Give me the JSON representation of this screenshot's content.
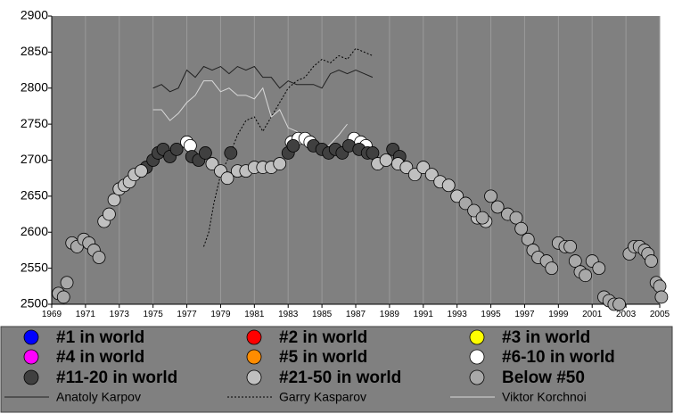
{
  "chart_data": {
    "type": "scatter",
    "xlim": [
      1969,
      2005
    ],
    "ylim": [
      2500,
      2900
    ],
    "xticks": [
      1969,
      1971,
      1973,
      1975,
      1977,
      1979,
      1981,
      1983,
      1985,
      1987,
      1989,
      1991,
      1993,
      1995,
      1997,
      1999,
      2001,
      2003,
      2005
    ],
    "yticks": [
      2500,
      2550,
      2600,
      2650,
      2700,
      2750,
      2800,
      2850,
      2900
    ],
    "grid": true,
    "series": [
      {
        "name": "#1 in world",
        "color": "#0000ff",
        "x": [],
        "values": []
      },
      {
        "name": "#2 in world",
        "color": "#ff0000",
        "x": [],
        "values": []
      },
      {
        "name": "#3 in world",
        "color": "#ffff00",
        "x": [],
        "values": []
      },
      {
        "name": "#4 in world",
        "color": "#ff00ff",
        "x": [],
        "values": []
      },
      {
        "name": "#5 in world",
        "color": "#ff8c00",
        "x": [],
        "values": []
      },
      {
        "name": "#6-10 in world",
        "color": "#ffffff",
        "x": [
          1977,
          1977.2,
          1983.2,
          1983.6,
          1984,
          1984.3,
          1986.9,
          1987.3,
          1987.6
        ],
        "values": [
          2725,
          2720,
          2725,
          2730,
          2730,
          2725,
          2730,
          2725,
          2720
        ]
      },
      {
        "name": "#11-20 in world",
        "color": "#404040",
        "x": [
          1974.6,
          1975,
          1975.3,
          1975.6,
          1976,
          1976.4,
          1977.3,
          1977.7,
          1978.1,
          1979.6,
          1983,
          1983.3,
          1984.5,
          1985,
          1985.4,
          1985.8,
          1986.2,
          1986.6,
          1987.2,
          1987.7,
          1988,
          1989.2,
          1989.6
        ],
        "values": [
          2690,
          2700,
          2710,
          2715,
          2705,
          2715,
          2705,
          2700,
          2710,
          2710,
          2710,
          2720,
          2720,
          2715,
          2710,
          2715,
          2710,
          2720,
          2715,
          2710,
          2710,
          2715,
          2705
        ]
      },
      {
        "name": "#21-50 in world",
        "color": "#c0c0c0",
        "x": [
          1972.1,
          1972.4,
          1972.7,
          1973,
          1973.3,
          1973.6,
          1973.9,
          1974.3,
          1978.5,
          1979,
          1979.4,
          1980,
          1980.5,
          1981,
          1981.5,
          1982,
          1982.5,
          1988.3,
          1988.8,
          1989.5,
          1990,
          1990.5,
          1991,
          1991.5,
          1992,
          1992.5,
          1993,
          1994.2,
          1994.7
        ],
        "values": [
          2615,
          2625,
          2645,
          2660,
          2665,
          2670,
          2680,
          2685,
          2695,
          2685,
          2675,
          2685,
          2685,
          2690,
          2690,
          2690,
          2695,
          2695,
          2700,
          2695,
          2690,
          2680,
          2690,
          2680,
          2670,
          2665,
          2650,
          2620,
          2615
        ]
      },
      {
        "name": "Below #50",
        "color": "#a8a8a8",
        "x": [
          1969.4,
          1969.7,
          1969.9,
          1970.2,
          1970.5,
          1970.9,
          1971.2,
          1971.5,
          1971.8,
          1993.5,
          1994,
          1994.5,
          1995,
          1995.4,
          1996,
          1996.5,
          1996.8,
          1997.2,
          1997.5,
          1997.8,
          1998.3,
          1998.6,
          1999,
          1999.4,
          1999.7,
          2000,
          2000.3,
          2000.6,
          2001,
          2001.4,
          2001.7,
          2002,
          2002.3,
          2002.6,
          2003.2,
          2003.5,
          2003.8,
          2004.1,
          2004.3,
          2004.5,
          2004.8,
          2005,
          2005.1
        ],
        "values": [
          2515,
          2510,
          2530,
          2585,
          2580,
          2590,
          2585,
          2575,
          2565,
          2640,
          2630,
          2620,
          2650,
          2635,
          2625,
          2620,
          2605,
          2590,
          2575,
          2565,
          2560,
          2550,
          2585,
          2580,
          2580,
          2560,
          2545,
          2540,
          2560,
          2550,
          2510,
          2505,
          2500,
          2500,
          2570,
          2580,
          2580,
          2575,
          2570,
          2560,
          2530,
          2525,
          2510
        ]
      },
      {
        "name": "Anatoly Karpov",
        "color": "#202020",
        "style": "solid",
        "x": [
          1975,
          1975.5,
          1976,
          1976.5,
          1977,
          1977.5,
          1978,
          1978.5,
          1979,
          1979.5,
          1980,
          1980.5,
          1981,
          1981.5,
          1982,
          1982.5,
          1983,
          1983.5,
          1984,
          1984.5,
          1985,
          1985.5,
          1986,
          1986.5,
          1987,
          1987.5,
          1988
        ],
        "values": [
          2800,
          2805,
          2795,
          2800,
          2825,
          2815,
          2830,
          2825,
          2830,
          2820,
          2830,
          2825,
          2830,
          2815,
          2815,
          2800,
          2810,
          2805,
          2805,
          2805,
          2800,
          2820,
          2825,
          2820,
          2825,
          2820,
          2815
        ]
      },
      {
        "name": "Garry Kasparov",
        "color": "#000000",
        "style": "dotted",
        "x": [
          1978,
          1978.3,
          1978.6,
          1979,
          1979.5,
          1980,
          1980.5,
          1981,
          1981.5,
          1982,
          1982.5,
          1983,
          1983.5,
          1984,
          1984.5,
          1985,
          1985.5,
          1986,
          1986.5,
          1987,
          1987.5,
          1988
        ],
        "values": [
          2580,
          2600,
          2640,
          2680,
          2705,
          2735,
          2755,
          2760,
          2740,
          2760,
          2780,
          2800,
          2810,
          2815,
          2830,
          2840,
          2835,
          2845,
          2840,
          2855,
          2850,
          2845
        ]
      },
      {
        "name": "Viktor Korchnoi",
        "color": "#d8d8d8",
        "style": "solid",
        "x": [
          1975,
          1975.5,
          1976,
          1976.5,
          1977,
          1977.5,
          1978,
          1978.5,
          1979,
          1979.5,
          1980,
          1980.5,
          1981,
          1981.5,
          1982,
          1982.5,
          1983,
          1983.5,
          1984,
          1985,
          1986,
          1986.5
        ],
        "values": [
          2770,
          2770,
          2755,
          2765,
          2780,
          2790,
          2810,
          2810,
          2795,
          2800,
          2790,
          2790,
          2785,
          2800,
          2760,
          2770,
          2745,
          2740,
          2730,
          2710,
          2735,
          2750
        ]
      }
    ]
  }
}
